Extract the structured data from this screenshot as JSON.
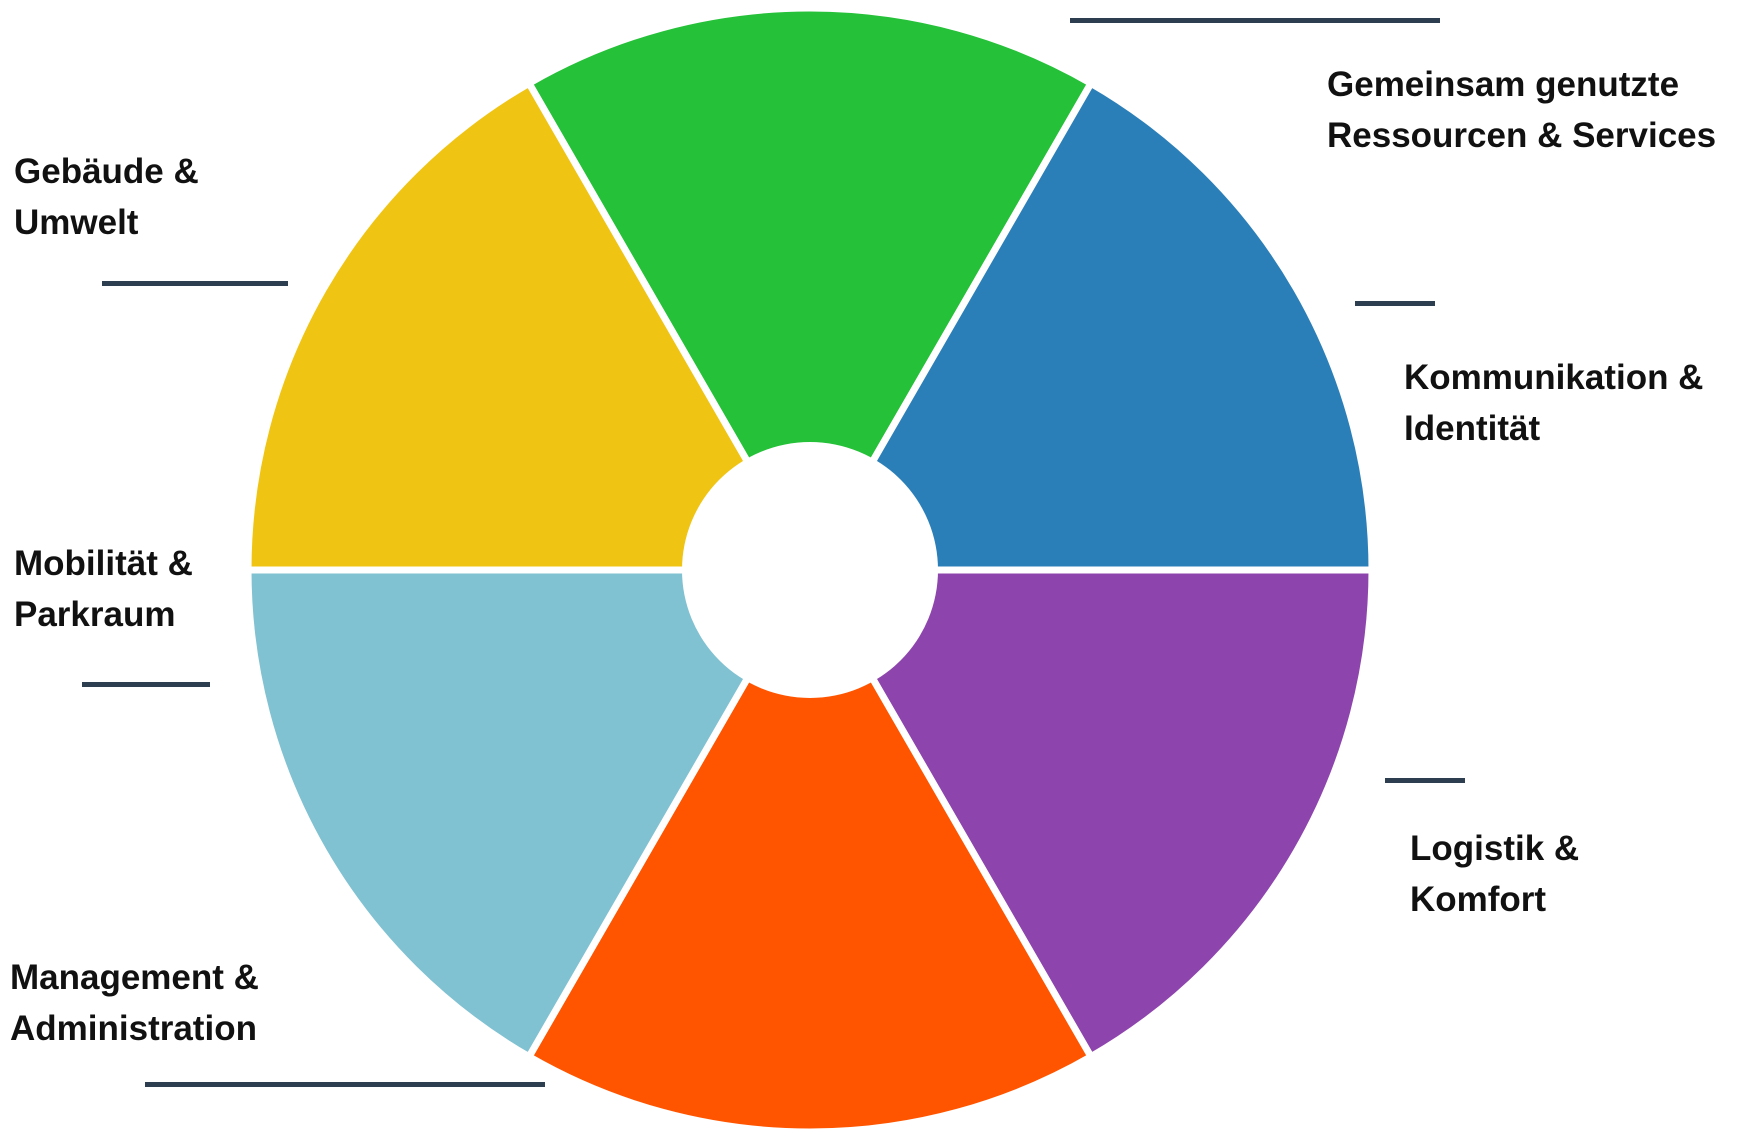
{
  "diagram": {
    "type": "segmented-wheel",
    "segments": [
      {
        "id": "shared",
        "lines": [
          "Gemeinsam genutzte",
          "Ressourcen & Services"
        ],
        "color": "#25c138"
      },
      {
        "id": "comm",
        "lines": [
          "Kommunikation &",
          "Identität"
        ],
        "color": "#2b7fb8"
      },
      {
        "id": "logistics",
        "lines": [
          "Logistik &",
          "Komfort"
        ],
        "color": "#8e44ad"
      },
      {
        "id": "management",
        "lines": [
          "Management &",
          "Administration"
        ],
        "color": "#ff5500"
      },
      {
        "id": "mobility",
        "lines": [
          "Mobilität &",
          "Parkraum"
        ],
        "color": "#80c1d2"
      },
      {
        "id": "building",
        "lines": [
          "Gebäude &",
          "Umwelt"
        ],
        "color": "#f0c412"
      }
    ],
    "separator_color": "#ffffff",
    "leader_color": "#2c3e50"
  }
}
